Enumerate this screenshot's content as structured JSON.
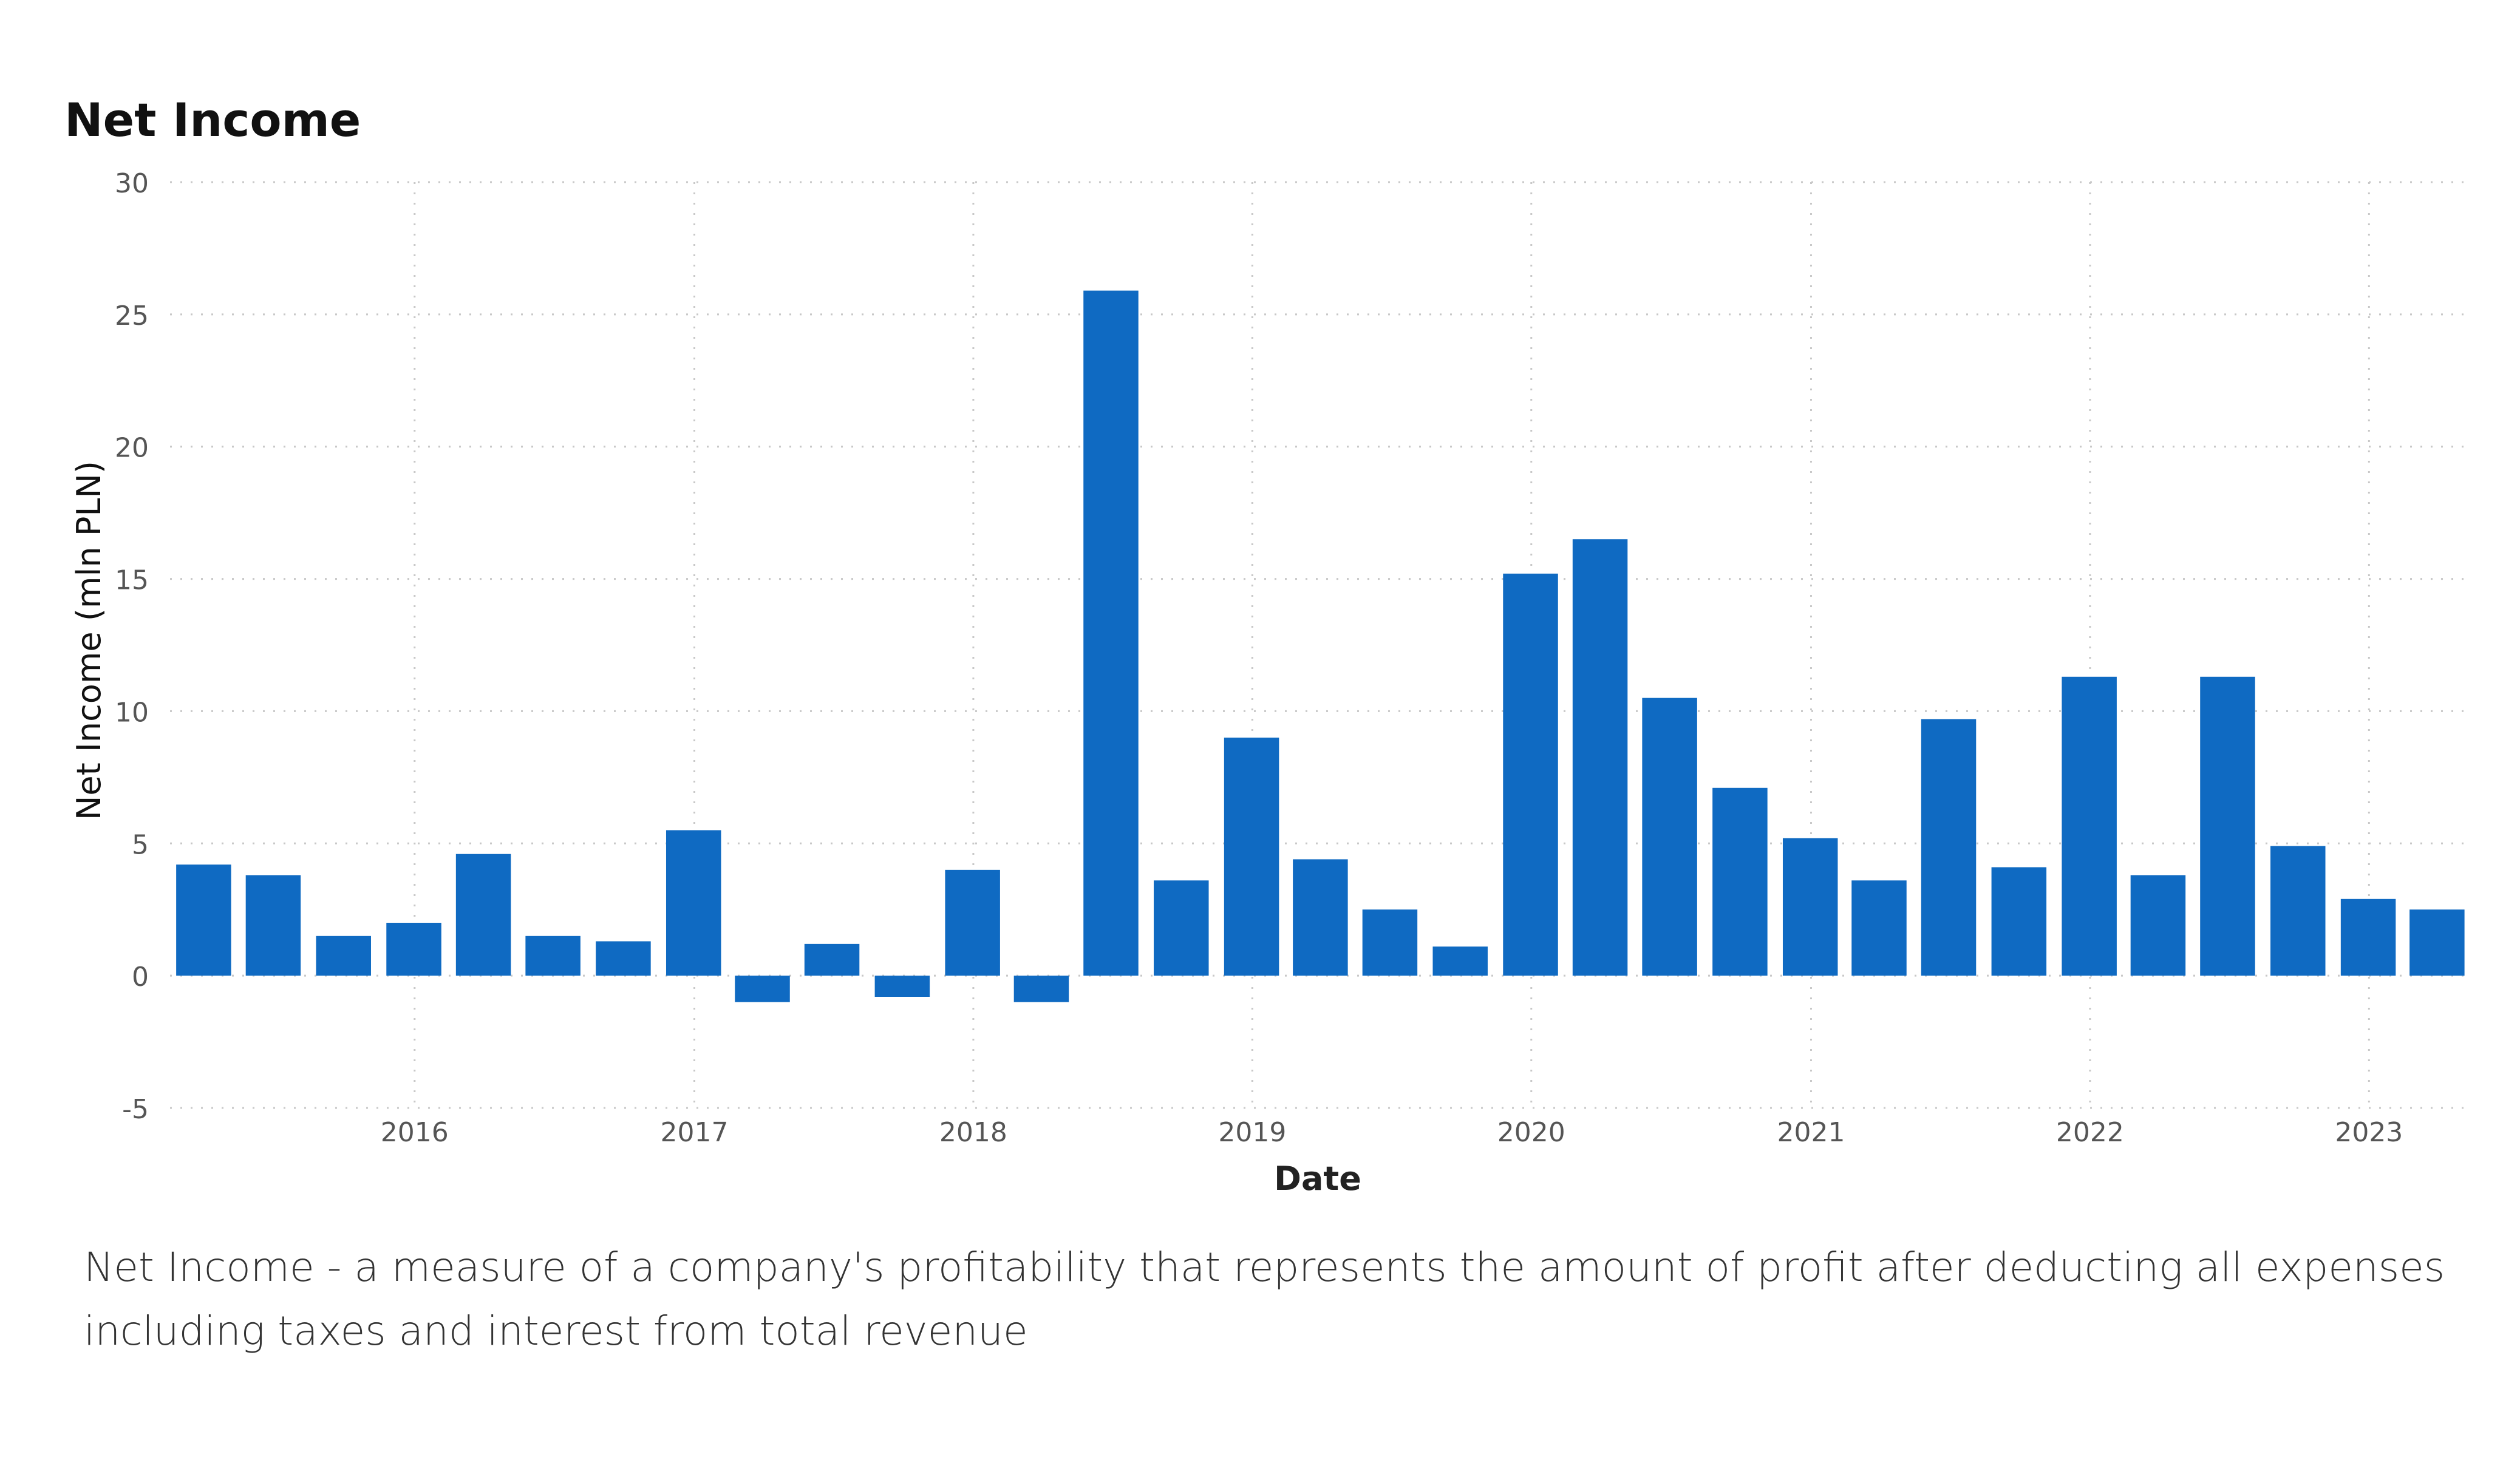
{
  "chart_data": {
    "type": "bar",
    "title": "Net Income",
    "xlabel": "Date",
    "ylabel": "Net Income (mln PLN)",
    "ylim": [
      -5,
      30
    ],
    "yticks": [
      -5,
      0,
      5,
      10,
      15,
      20,
      25,
      30
    ],
    "xlim": [
      "2015-02-15",
      "2023-05-15"
    ],
    "xticks": [
      "2016",
      "2017",
      "2018",
      "2019",
      "2020",
      "2021",
      "2022",
      "2023"
    ],
    "grid": true,
    "bar_color": "#0F6AC2",
    "series": [
      {
        "dates": [
          "2015-03-31",
          "2015-06-30",
          "2015-09-30",
          "2015-12-31",
          "2016-03-31",
          "2016-06-30",
          "2016-09-30",
          "2016-12-31",
          "2017-03-31",
          "2017-06-30",
          "2017-09-30",
          "2017-12-31",
          "2018-03-31",
          "2018-06-30",
          "2018-09-30",
          "2018-12-31",
          "2019-03-31",
          "2019-06-30",
          "2019-09-30",
          "2019-12-31",
          "2020-03-31",
          "2020-06-30",
          "2020-09-30",
          "2020-12-31",
          "2021-03-31",
          "2021-06-30",
          "2021-09-30",
          "2021-12-31",
          "2022-03-31",
          "2022-06-30",
          "2022-09-30",
          "2022-12-31",
          "2023-03-31"
        ],
        "values": [
          4.2,
          3.8,
          1.5,
          2.0,
          4.6,
          1.5,
          1.3,
          5.5,
          -1.0,
          1.2,
          -0.8,
          4.0,
          -1.0,
          25.9,
          3.6,
          9.0,
          4.4,
          2.5,
          1.1,
          15.2,
          16.5,
          10.5,
          7.1,
          5.2,
          3.6,
          9.7,
          4.1,
          11.3,
          3.8,
          11.3,
          4.9,
          2.9,
          2.5
        ]
      }
    ]
  },
  "caption": "Net Income - a measure of a company's profitability that represents the amount of profit after deducting all expenses including taxes and interest from total revenue"
}
